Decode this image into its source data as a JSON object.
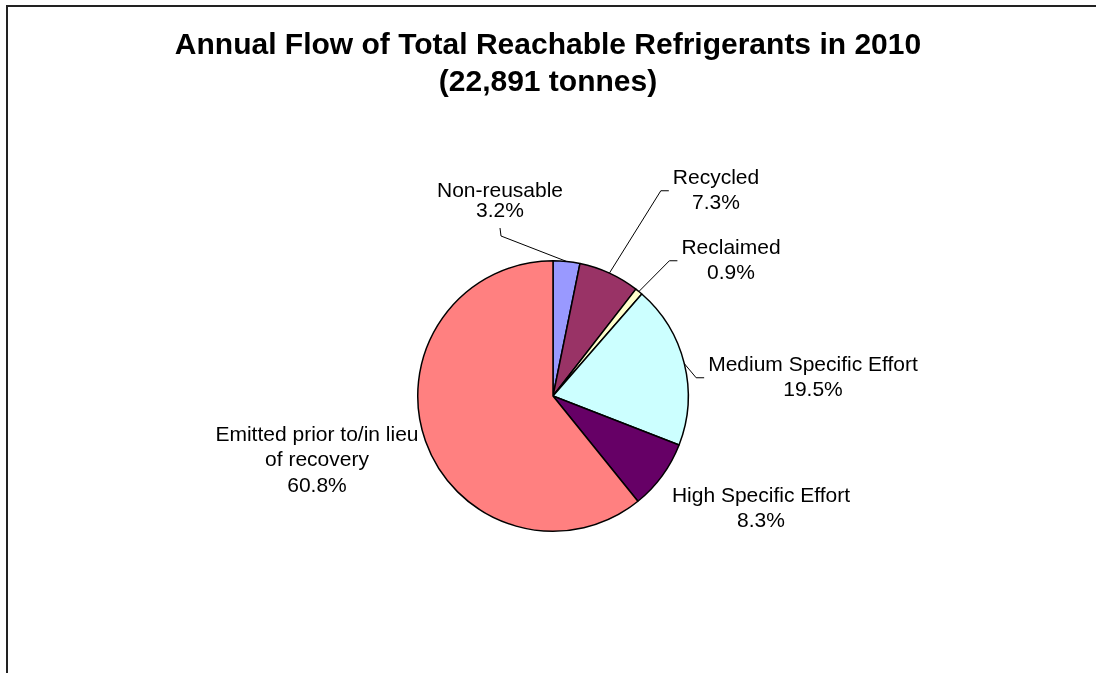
{
  "chart_data": {
    "type": "pie",
    "title": "Annual Flow of Total Reachable Refrigerants in 2010",
    "subtitle": "(22,891 tonnes)",
    "categories": [
      "Non-reusable",
      "Recycled",
      "Reclaimed",
      "Medium Specific Effort",
      "High Specific Effort",
      "Emitted prior to/in lieu of recovery"
    ],
    "values": [
      3.2,
      7.3,
      0.9,
      19.5,
      8.3,
      60.8
    ],
    "colors": [
      "#9999ff",
      "#993366",
      "#ffffcc",
      "#ccffff",
      "#660066",
      "#ff8080"
    ],
    "value_labels": [
      "3.2%",
      "7.3%",
      "0.9%",
      "19.5%",
      "8.3%",
      "60.8%"
    ],
    "legend": false
  }
}
